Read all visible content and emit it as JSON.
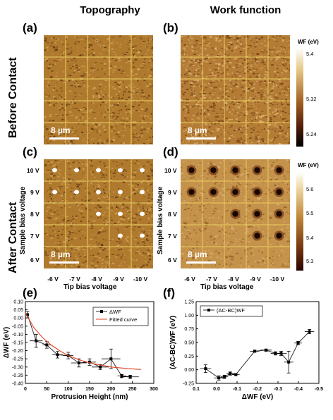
{
  "columns": {
    "topography": "Topography",
    "work_function": "Work function"
  },
  "rows": {
    "before": "Before Contact",
    "after": "After Contact"
  },
  "panel_labels": {
    "a": "(a)",
    "b": "(b)",
    "c": "(c)",
    "d": "(d)",
    "e": "(e)",
    "f": "(f)"
  },
  "scale_bar": "8 µm",
  "sample_bias_label": "Sample bias voltage",
  "tip_bias_label": "Tip bias voltage",
  "sample_bias_ticks": [
    "10 V",
    "9 V",
    "8 V",
    "7 V",
    "6 V"
  ],
  "tip_bias_ticks": [
    "-6 V",
    "-7 V",
    "-8 V",
    "-9 V",
    "-10 V"
  ],
  "colorbar_b": {
    "title": "WF (eV)",
    "ticks": [
      "5.4",
      "5.32",
      "5.24"
    ]
  },
  "colorbar_d": {
    "title": "WF (eV)",
    "ticks": [
      "5.6",
      "5.5",
      "5.4",
      "5.3"
    ]
  },
  "colors": {
    "afm_mid": "#b07a2e",
    "afm_dark": "#5a3310",
    "afm_light": "#d7ac62",
    "grid": "#e6c860",
    "fit": "#e04020"
  },
  "contact_features": [
    [
      1,
      1,
      1,
      1,
      1
    ],
    [
      1,
      1,
      1,
      1,
      1
    ],
    [
      0,
      0,
      1,
      1,
      1
    ],
    [
      0,
      0,
      0,
      1,
      1
    ],
    [
      0,
      0,
      0,
      0,
      0
    ]
  ],
  "chart_data": [
    {
      "type": "line",
      "panel": "(e)",
      "xlabel": "Protrusion Height (nm)",
      "ylabel": "ΔWF (eV)",
      "xlim": [
        0,
        300
      ],
      "ylim": [
        -0.4,
        0.1
      ],
      "xticks": [
        "0",
        "50",
        "100",
        "150",
        "200",
        "250",
        "300"
      ],
      "yticks": [
        "0.10",
        "0.05",
        "0.00",
        "-0.05",
        "-0.10",
        "-0.15",
        "-0.20",
        "-0.25",
        "-0.30",
        "-0.35",
        "-0.40"
      ],
      "legend": [
        "ΔWF",
        "Fitted curve"
      ],
      "series": [
        {
          "name": "ΔWF",
          "x": [
            5,
            25,
            50,
            75,
            100,
            125,
            150,
            175,
            200,
            225,
            245
          ],
          "y": [
            0.02,
            -0.14,
            -0.165,
            -0.225,
            -0.23,
            -0.275,
            -0.27,
            -0.3,
            -0.25,
            -0.355,
            -0.36
          ],
          "xerr": [
            2,
            15,
            10,
            12,
            12,
            18,
            15,
            20,
            22,
            10,
            20
          ],
          "yerr": [
            0.02,
            0.04,
            0.02,
            0.02,
            0.02,
            0.025,
            0.02,
            0.015,
            0.06,
            0.01,
            0.01
          ]
        },
        {
          "name": "Fitted curve",
          "x": [
            0,
            20,
            40,
            60,
            80,
            100,
            130,
            160,
            200,
            240,
            270
          ],
          "y": [
            0.03,
            -0.06,
            -0.12,
            -0.165,
            -0.2,
            -0.23,
            -0.26,
            -0.28,
            -0.3,
            -0.31,
            -0.315
          ]
        }
      ]
    },
    {
      "type": "line",
      "panel": "(f)",
      "xlabel": "ΔWF (eV)",
      "ylabel": "(AC-BC)WF (eV)",
      "xlim": [
        0.15,
        -0.5
      ],
      "ylim": [
        -0.25,
        1.25
      ],
      "xticks": [
        "0.1",
        "0.0",
        "-0.1",
        "-0.2",
        "-0.3",
        "-0.4",
        "-0.5"
      ],
      "yticks": [
        "1.25",
        "1.00",
        "0.75",
        "0.50",
        "0.25",
        "0.00",
        "-0.25"
      ],
      "legend": [
        "(AC-BC)WF"
      ],
      "series": [
        {
          "name": "(AC-BC)WF",
          "x": [
            0.1,
            0.03,
            0.0,
            -0.03,
            -0.06,
            -0.16,
            -0.22,
            -0.27,
            -0.3,
            -0.34,
            -0.39,
            -0.45
          ],
          "y": [
            0.02,
            -0.15,
            -0.13,
            -0.07,
            -0.09,
            0.34,
            0.36,
            0.3,
            0.3,
            0.14,
            0.49,
            0.7
          ],
          "xerr": [
            0.03,
            0.025,
            0.02,
            0.02,
            0.02,
            0.025,
            0.03,
            0.025,
            0.03,
            0.025,
            0.02,
            0.025
          ],
          "yerr": [
            0.07,
            0.04,
            0.03,
            0.03,
            0.02,
            0.02,
            0.02,
            0.03,
            0.04,
            0.2,
            0.03,
            0.04
          ]
        }
      ]
    }
  ]
}
